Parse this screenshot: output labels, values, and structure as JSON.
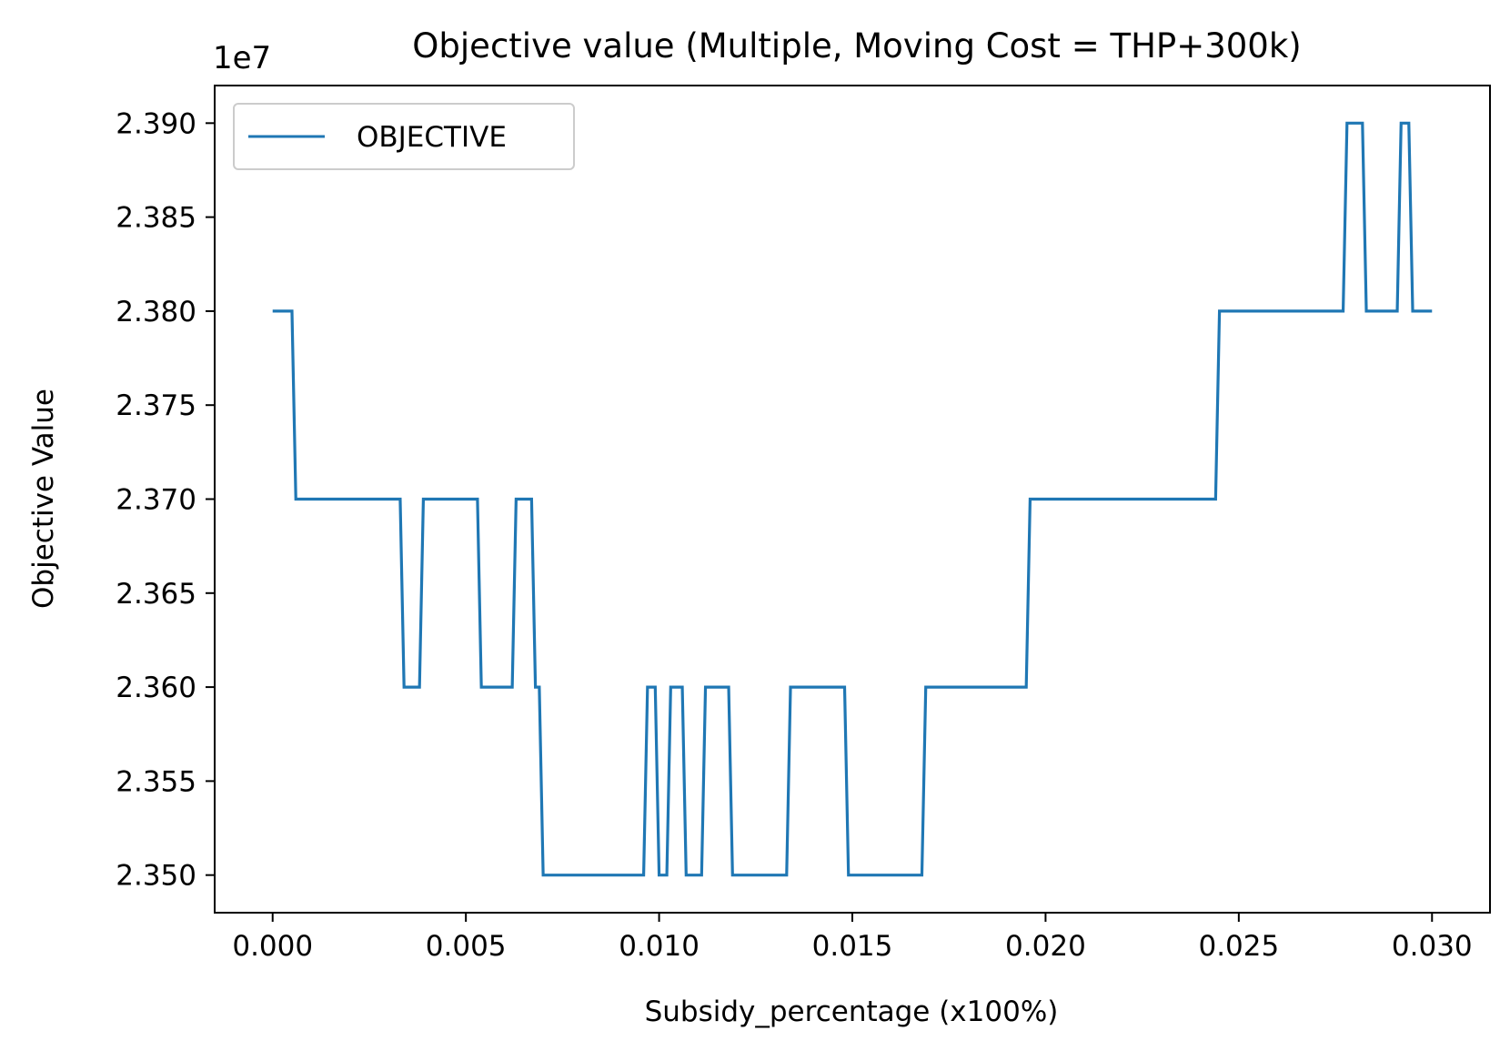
{
  "chart_data": {
    "type": "line",
    "title": "Objective value (Multiple, Moving Cost = THP+300k)",
    "xlabel": "Subsidy_percentage (x100%)",
    "ylabel": "Objective Value",
    "y_offset_label": "1e7",
    "xlim": [
      -0.0015,
      0.0315
    ],
    "ylim": [
      2.348,
      2.392
    ],
    "xticks": [
      0.0,
      0.005,
      0.01,
      0.015,
      0.02,
      0.025,
      0.03
    ],
    "xtick_labels": [
      "0.000",
      "0.005",
      "0.010",
      "0.015",
      "0.020",
      "0.025",
      "0.030"
    ],
    "yticks": [
      2.35,
      2.355,
      2.36,
      2.365,
      2.37,
      2.375,
      2.38,
      2.385,
      2.39
    ],
    "ytick_labels": [
      "2.350",
      "2.355",
      "2.360",
      "2.365",
      "2.370",
      "2.375",
      "2.380",
      "2.385",
      "2.390"
    ],
    "grid": false,
    "legend_position": "top-left",
    "series": [
      {
        "name": "OBJECTIVE",
        "color": "#1f77b4",
        "x": [
          0.0,
          0.0005,
          0.0006,
          0.0033,
          0.0034,
          0.0038,
          0.0039,
          0.0053,
          0.0054,
          0.0062,
          0.0063,
          0.0067,
          0.0068,
          0.0069,
          0.007,
          0.0096,
          0.0097,
          0.0099,
          0.01,
          0.0102,
          0.0103,
          0.0106,
          0.0107,
          0.0111,
          0.0112,
          0.0118,
          0.0119,
          0.0133,
          0.0134,
          0.0148,
          0.0149,
          0.0168,
          0.0169,
          0.0195,
          0.0196,
          0.0244,
          0.0245,
          0.0277,
          0.0278,
          0.0282,
          0.0283,
          0.0291,
          0.0292,
          0.0294,
          0.0295,
          0.03
        ],
        "values": [
          2.38,
          2.38,
          2.37,
          2.37,
          2.36,
          2.36,
          2.37,
          2.37,
          2.36,
          2.36,
          2.37,
          2.37,
          2.36,
          2.36,
          2.35,
          2.35,
          2.36,
          2.36,
          2.35,
          2.35,
          2.36,
          2.36,
          2.35,
          2.35,
          2.36,
          2.36,
          2.35,
          2.35,
          2.36,
          2.36,
          2.35,
          2.35,
          2.36,
          2.36,
          2.37,
          2.37,
          2.38,
          2.38,
          2.39,
          2.39,
          2.38,
          2.38,
          2.39,
          2.39,
          2.38,
          2.38
        ]
      }
    ]
  }
}
